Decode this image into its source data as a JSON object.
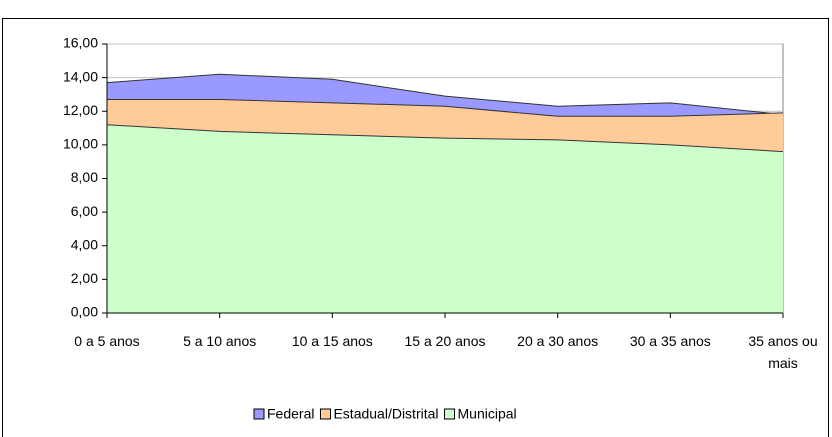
{
  "chart_data": {
    "type": "area",
    "categories": [
      "0 a 5 anos",
      "5 a 10 anos",
      "10 a 15 anos",
      "15 a 20 anos",
      "20 a 30 anos",
      "30 a 35 anos",
      "35 anos ou mais"
    ],
    "series": [
      {
        "name": "Federal",
        "color": "#9999ff",
        "values": [
          13.7,
          14.2,
          13.9,
          12.9,
          12.3,
          12.5,
          11.8
        ]
      },
      {
        "name": "Estadual/Distrital",
        "color": "#ffcc99",
        "values": [
          12.7,
          12.7,
          12.5,
          12.3,
          11.7,
          11.7,
          11.9
        ]
      },
      {
        "name": "Municipal",
        "color": "#ccffcc",
        "values": [
          11.2,
          10.8,
          10.6,
          10.4,
          10.3,
          10.0,
          9.6
        ]
      }
    ],
    "ylim": [
      0,
      16
    ],
    "yticks": [
      {
        "value": 0,
        "label": "0,00"
      },
      {
        "value": 2,
        "label": "2,00"
      },
      {
        "value": 4,
        "label": "4,00"
      },
      {
        "value": 6,
        "label": "6,00"
      },
      {
        "value": 8,
        "label": "8,00"
      },
      {
        "value": 10,
        "label": "10,00"
      },
      {
        "value": 12,
        "label": "12,00"
      },
      {
        "value": 14,
        "label": "14,00"
      },
      {
        "value": 16,
        "label": "16,00"
      }
    ],
    "grid": true
  }
}
